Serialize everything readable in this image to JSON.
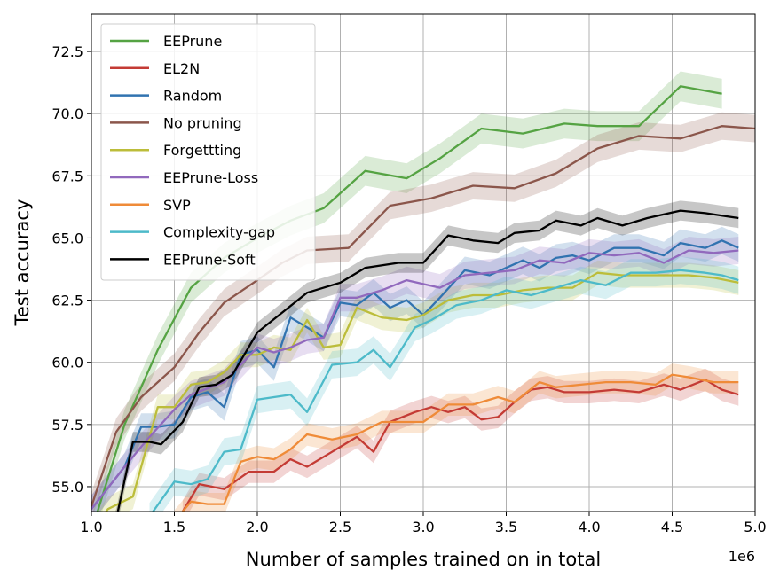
{
  "chart_data": {
    "type": "line",
    "xlabel": "Number of samples trained on in total",
    "ylabel": "Test accuracy",
    "x_offset_label": "1e6",
    "xlim": [
      1.0,
      5.0
    ],
    "ylim": [
      54.0,
      74.0
    ],
    "xticks": [
      1.0,
      1.5,
      2.0,
      2.5,
      3.0,
      3.5,
      4.0,
      4.5,
      5.0
    ],
    "xtick_labels": [
      "1.0",
      "1.5",
      "2.0",
      "2.5",
      "3.0",
      "3.5",
      "4.0",
      "4.5",
      "5.0"
    ],
    "yticks": [
      55.0,
      57.5,
      60.0,
      62.5,
      65.0,
      67.5,
      70.0,
      72.5
    ],
    "ytick_labels": [
      "55.0",
      "57.5",
      "60.0",
      "62.5",
      "65.0",
      "67.5",
      "70.0",
      "72.5"
    ],
    "grid": true,
    "legend_position": "top-left",
    "series": [
      {
        "name": "EEPrune",
        "color": "#55a343",
        "band": 0.6,
        "points": [
          [
            1.0,
            53.2
          ],
          [
            1.2,
            57.5
          ],
          [
            1.4,
            60.5
          ],
          [
            1.6,
            63.0
          ],
          [
            1.8,
            64.2
          ],
          [
            2.0,
            65.0
          ],
          [
            2.2,
            65.7
          ],
          [
            2.4,
            66.2
          ],
          [
            2.65,
            67.7
          ],
          [
            2.9,
            67.4
          ],
          [
            3.1,
            68.2
          ],
          [
            3.35,
            69.4
          ],
          [
            3.6,
            69.2
          ],
          [
            3.85,
            69.6
          ],
          [
            4.05,
            69.5
          ],
          [
            4.3,
            69.5
          ],
          [
            4.55,
            71.1
          ],
          [
            4.8,
            70.8
          ]
        ]
      },
      {
        "name": "EL2N",
        "color": "#c43b35",
        "band": 0.45,
        "points": [
          [
            1.55,
            54.0
          ],
          [
            1.65,
            55.1
          ],
          [
            1.8,
            54.9
          ],
          [
            1.95,
            55.6
          ],
          [
            2.1,
            55.6
          ],
          [
            2.2,
            56.1
          ],
          [
            2.3,
            55.8
          ],
          [
            2.45,
            56.4
          ],
          [
            2.6,
            57.0
          ],
          [
            2.7,
            56.4
          ],
          [
            2.8,
            57.6
          ],
          [
            2.95,
            58.0
          ],
          [
            3.05,
            58.2
          ],
          [
            3.15,
            58.0
          ],
          [
            3.25,
            58.2
          ],
          [
            3.35,
            57.7
          ],
          [
            3.45,
            57.8
          ],
          [
            3.55,
            58.4
          ],
          [
            3.65,
            58.9
          ],
          [
            3.75,
            59.0
          ],
          [
            3.85,
            58.8
          ],
          [
            4.0,
            58.8
          ],
          [
            4.15,
            58.9
          ],
          [
            4.3,
            58.8
          ],
          [
            4.45,
            59.1
          ],
          [
            4.55,
            58.9
          ],
          [
            4.7,
            59.3
          ],
          [
            4.8,
            58.9
          ],
          [
            4.9,
            58.7
          ]
        ]
      },
      {
        "name": "Random",
        "color": "#3173b0",
        "band": 0.55,
        "points": [
          [
            1.0,
            54.1
          ],
          [
            1.2,
            55.8
          ],
          [
            1.3,
            57.4
          ],
          [
            1.4,
            57.4
          ],
          [
            1.5,
            57.5
          ],
          [
            1.6,
            58.6
          ],
          [
            1.7,
            58.8
          ],
          [
            1.8,
            58.2
          ],
          [
            1.9,
            60.3
          ],
          [
            2.0,
            60.5
          ],
          [
            2.1,
            59.8
          ],
          [
            2.2,
            61.8
          ],
          [
            2.3,
            61.4
          ],
          [
            2.4,
            61.0
          ],
          [
            2.5,
            62.4
          ],
          [
            2.6,
            62.3
          ],
          [
            2.7,
            62.8
          ],
          [
            2.8,
            62.2
          ],
          [
            2.9,
            62.5
          ],
          [
            3.0,
            61.9
          ],
          [
            3.1,
            62.6
          ],
          [
            3.25,
            63.7
          ],
          [
            3.4,
            63.5
          ],
          [
            3.5,
            63.8
          ],
          [
            3.6,
            64.1
          ],
          [
            3.7,
            63.8
          ],
          [
            3.8,
            64.2
          ],
          [
            3.9,
            64.3
          ],
          [
            4.0,
            64.1
          ],
          [
            4.15,
            64.6
          ],
          [
            4.3,
            64.6
          ],
          [
            4.45,
            64.3
          ],
          [
            4.55,
            64.8
          ],
          [
            4.7,
            64.6
          ],
          [
            4.8,
            64.9
          ],
          [
            4.9,
            64.6
          ]
        ]
      },
      {
        "name": "No pruning",
        "color": "#8b564b",
        "band": 0.55,
        "points": [
          [
            1.0,
            54.2
          ],
          [
            1.15,
            57.2
          ],
          [
            1.3,
            58.6
          ],
          [
            1.5,
            59.8
          ],
          [
            1.65,
            61.2
          ],
          [
            1.8,
            62.4
          ],
          [
            2.0,
            63.3
          ],
          [
            2.15,
            64.0
          ],
          [
            2.3,
            64.5
          ],
          [
            2.55,
            64.6
          ],
          [
            2.8,
            66.3
          ],
          [
            3.05,
            66.6
          ],
          [
            3.3,
            67.1
          ],
          [
            3.55,
            67.0
          ],
          [
            3.8,
            67.6
          ],
          [
            4.05,
            68.6
          ],
          [
            4.3,
            69.1
          ],
          [
            4.55,
            69.0
          ],
          [
            4.8,
            69.5
          ],
          [
            5.0,
            69.4
          ]
        ]
      },
      {
        "name": "Forgettting",
        "color": "#bcbd3a",
        "band": 0.5,
        "points": [
          [
            1.0,
            53.2
          ],
          [
            1.1,
            54.1
          ],
          [
            1.25,
            54.6
          ],
          [
            1.4,
            58.2
          ],
          [
            1.5,
            58.2
          ],
          [
            1.6,
            59.1
          ],
          [
            1.7,
            59.2
          ],
          [
            1.8,
            59.6
          ],
          [
            1.9,
            60.3
          ],
          [
            2.0,
            60.3
          ],
          [
            2.1,
            60.6
          ],
          [
            2.2,
            60.5
          ],
          [
            2.3,
            61.7
          ],
          [
            2.4,
            60.6
          ],
          [
            2.5,
            60.7
          ],
          [
            2.6,
            62.2
          ],
          [
            2.75,
            61.8
          ],
          [
            2.9,
            61.7
          ],
          [
            3.0,
            61.9
          ],
          [
            3.15,
            62.5
          ],
          [
            3.3,
            62.7
          ],
          [
            3.45,
            62.7
          ],
          [
            3.6,
            62.9
          ],
          [
            3.75,
            63.0
          ],
          [
            3.9,
            63.0
          ],
          [
            4.05,
            63.6
          ],
          [
            4.2,
            63.5
          ],
          [
            4.4,
            63.5
          ],
          [
            4.6,
            63.5
          ],
          [
            4.75,
            63.4
          ],
          [
            4.9,
            63.2
          ]
        ]
      },
      {
        "name": "EEPrune-Loss",
        "color": "#9169bd",
        "band": 0.55,
        "points": [
          [
            1.0,
            54.1
          ],
          [
            1.2,
            55.8
          ],
          [
            1.35,
            57.0
          ],
          [
            1.5,
            58.1
          ],
          [
            1.6,
            58.7
          ],
          [
            1.8,
            59.2
          ],
          [
            2.0,
            60.6
          ],
          [
            2.1,
            60.4
          ],
          [
            2.2,
            60.6
          ],
          [
            2.3,
            60.9
          ],
          [
            2.4,
            61.0
          ],
          [
            2.5,
            62.6
          ],
          [
            2.6,
            62.6
          ],
          [
            2.75,
            62.9
          ],
          [
            2.9,
            63.3
          ],
          [
            3.1,
            63.0
          ],
          [
            3.25,
            63.5
          ],
          [
            3.4,
            63.6
          ],
          [
            3.55,
            63.7
          ],
          [
            3.7,
            64.1
          ],
          [
            3.85,
            64.0
          ],
          [
            4.0,
            64.4
          ],
          [
            4.15,
            64.3
          ],
          [
            4.3,
            64.4
          ],
          [
            4.45,
            64.0
          ],
          [
            4.6,
            64.5
          ],
          [
            4.75,
            64.4
          ],
          [
            4.9,
            64.5
          ]
        ]
      },
      {
        "name": "SVP",
        "color": "#ef8b38",
        "band": 0.45,
        "points": [
          [
            1.5,
            53.6
          ],
          [
            1.6,
            54.4
          ],
          [
            1.7,
            54.3
          ],
          [
            1.8,
            54.3
          ],
          [
            1.9,
            56.0
          ],
          [
            2.0,
            56.2
          ],
          [
            2.1,
            56.1
          ],
          [
            2.2,
            56.5
          ],
          [
            2.3,
            57.1
          ],
          [
            2.45,
            56.9
          ],
          [
            2.6,
            57.1
          ],
          [
            2.75,
            57.6
          ],
          [
            2.9,
            57.6
          ],
          [
            3.0,
            57.6
          ],
          [
            3.15,
            58.3
          ],
          [
            3.3,
            58.3
          ],
          [
            3.45,
            58.6
          ],
          [
            3.55,
            58.4
          ],
          [
            3.7,
            59.2
          ],
          [
            3.8,
            59.0
          ],
          [
            3.95,
            59.1
          ],
          [
            4.1,
            59.2
          ],
          [
            4.25,
            59.2
          ],
          [
            4.4,
            59.1
          ],
          [
            4.5,
            59.5
          ],
          [
            4.6,
            59.4
          ],
          [
            4.75,
            59.2
          ],
          [
            4.9,
            59.2
          ]
        ]
      },
      {
        "name": "Complexity-gap",
        "color": "#4dbac9",
        "band": 0.55,
        "points": [
          [
            1.35,
            53.8
          ],
          [
            1.5,
            55.2
          ],
          [
            1.6,
            55.1
          ],
          [
            1.7,
            55.3
          ],
          [
            1.8,
            56.4
          ],
          [
            1.9,
            56.5
          ],
          [
            2.0,
            58.5
          ],
          [
            2.1,
            58.6
          ],
          [
            2.2,
            58.7
          ],
          [
            2.3,
            58.0
          ],
          [
            2.45,
            59.9
          ],
          [
            2.6,
            60.0
          ],
          [
            2.7,
            60.5
          ],
          [
            2.8,
            59.8
          ],
          [
            2.95,
            61.4
          ],
          [
            3.05,
            61.7
          ],
          [
            3.2,
            62.3
          ],
          [
            3.35,
            62.5
          ],
          [
            3.5,
            62.9
          ],
          [
            3.65,
            62.7
          ],
          [
            3.8,
            63.0
          ],
          [
            3.95,
            63.3
          ],
          [
            4.1,
            63.1
          ],
          [
            4.25,
            63.6
          ],
          [
            4.4,
            63.6
          ],
          [
            4.55,
            63.7
          ],
          [
            4.7,
            63.6
          ],
          [
            4.8,
            63.5
          ],
          [
            4.9,
            63.3
          ]
        ]
      },
      {
        "name": "EEPrune-Soft",
        "color": "#000000",
        "band": 0.4,
        "points": [
          [
            1.0,
            51.5
          ],
          [
            1.15,
            53.7
          ],
          [
            1.25,
            56.8
          ],
          [
            1.35,
            56.8
          ],
          [
            1.42,
            56.7
          ],
          [
            1.55,
            57.6
          ],
          [
            1.65,
            59.0
          ],
          [
            1.75,
            59.1
          ],
          [
            1.85,
            59.5
          ],
          [
            2.0,
            61.2
          ],
          [
            2.15,
            62.0
          ],
          [
            2.3,
            62.8
          ],
          [
            2.5,
            63.2
          ],
          [
            2.65,
            63.8
          ],
          [
            2.85,
            64.0
          ],
          [
            3.0,
            64.0
          ],
          [
            3.15,
            65.1
          ],
          [
            3.3,
            64.9
          ],
          [
            3.45,
            64.8
          ],
          [
            3.55,
            65.2
          ],
          [
            3.7,
            65.3
          ],
          [
            3.8,
            65.7
          ],
          [
            3.95,
            65.5
          ],
          [
            4.05,
            65.8
          ],
          [
            4.2,
            65.5
          ],
          [
            4.35,
            65.8
          ],
          [
            4.55,
            66.1
          ],
          [
            4.7,
            66.0
          ],
          [
            4.8,
            65.9
          ],
          [
            4.9,
            65.8
          ]
        ]
      }
    ]
  }
}
